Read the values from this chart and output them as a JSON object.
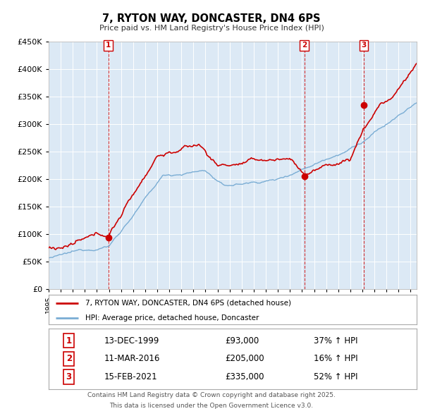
{
  "title": "7, RYTON WAY, DONCASTER, DN4 6PS",
  "subtitle": "Price paid vs. HM Land Registry's House Price Index (HPI)",
  "bg_color": "#dce9f5",
  "fig_bg_color": "#ffffff",
  "red_line_label": "7, RYTON WAY, DONCASTER, DN4 6PS (detached house)",
  "blue_line_label": "HPI: Average price, detached house, Doncaster",
  "red_color": "#cc0000",
  "blue_color": "#7aadd4",
  "ylim": [
    0,
    450000
  ],
  "yticks": [
    0,
    50000,
    100000,
    150000,
    200000,
    250000,
    300000,
    350000,
    400000,
    450000
  ],
  "xlim_start": 1995.0,
  "xlim_end": 2025.5,
  "transactions": [
    {
      "num": 1,
      "date": "13-DEC-1999",
      "year": 1999.95,
      "price": 93000,
      "pct": "37%",
      "dir": "↑"
    },
    {
      "num": 2,
      "date": "11-MAR-2016",
      "year": 2016.19,
      "price": 205000,
      "pct": "16%",
      "dir": "↑"
    },
    {
      "num": 3,
      "date": "15-FEB-2021",
      "year": 2021.12,
      "price": 335000,
      "pct": "52%",
      "dir": "↑"
    }
  ],
  "footer_line1": "Contains HM Land Registry data © Crown copyright and database right 2025.",
  "footer_line2": "This data is licensed under the Open Government Licence v3.0."
}
